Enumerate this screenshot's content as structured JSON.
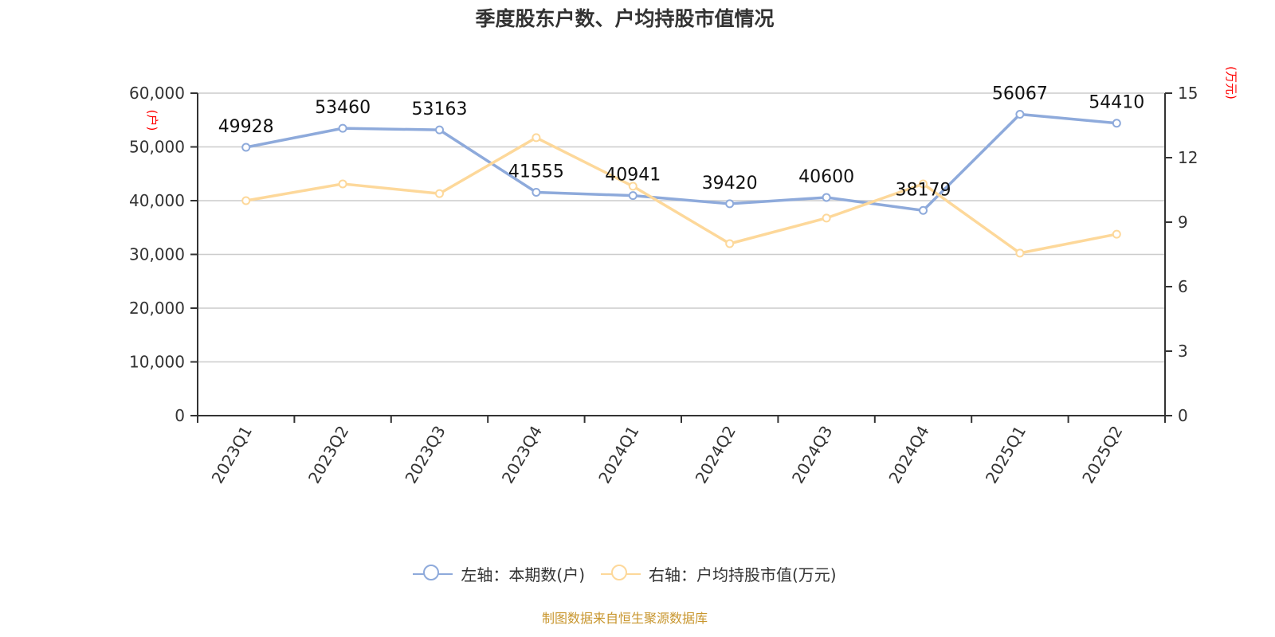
{
  "title": "季度股东户数、户均持股市值情况",
  "left_axis_unit": "(户)",
  "right_axis_unit": "(万元)",
  "legend": {
    "left_series": "左轴：本期数(户)",
    "right_series": "右轴：户均持股市值(万元)"
  },
  "footer": "制图数据来自恒生聚源数据库",
  "colors": {
    "left_series": "#8eaadb",
    "right_series": "#fdd89a",
    "axis_unit": "#ff0000",
    "footer": "#c8962e",
    "grid": "#cccccc"
  },
  "chart_data": {
    "type": "line",
    "title": "季度股东户数、户均持股市值情况",
    "categories": [
      "2023Q1",
      "2023Q2",
      "2023Q3",
      "2023Q4",
      "2024Q1",
      "2024Q2",
      "2024Q3",
      "2024Q4",
      "2025Q1",
      "2025Q2"
    ],
    "series": [
      {
        "name": "左轴：本期数(户)",
        "axis": "left",
        "values": [
          49928,
          53460,
          53163,
          41555,
          40941,
          39420,
          40600,
          38179,
          56067,
          54410
        ],
        "labels_shown": true
      },
      {
        "name": "右轴：户均持股市值(万元)",
        "axis": "right",
        "values": [
          10.0,
          10.78,
          10.33,
          12.93,
          10.67,
          8.0,
          9.19,
          10.78,
          7.56,
          8.44
        ],
        "labels_shown": false
      }
    ],
    "ylabel_left": "(户)",
    "ylabel_right": "(万元)",
    "ylim_left": [
      0,
      60000
    ],
    "ylim_right": [
      0,
      15
    ],
    "yticks_left": [
      "0",
      "10,000",
      "20,000",
      "30,000",
      "40,000",
      "50,000",
      "60,000"
    ],
    "yticks_right": [
      "0",
      "3",
      "6",
      "9",
      "12",
      "15"
    ],
    "grid": true,
    "legend_position": "bottom"
  }
}
